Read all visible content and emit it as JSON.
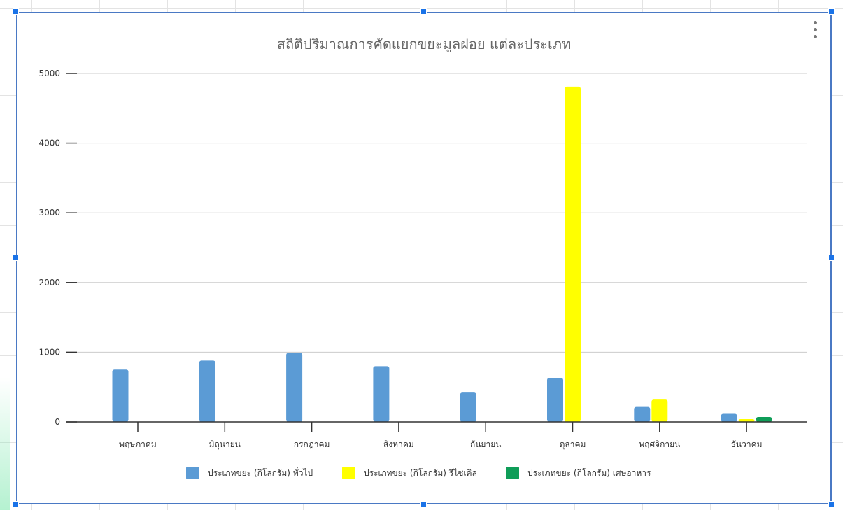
{
  "chart_data": {
    "type": "bar",
    "title": "สถิติปริมาณการคัดแยกขยะมูลฝอย แต่ละประเภท",
    "xlabel": "",
    "ylabel": "",
    "ylim": [
      0,
      5000
    ],
    "yticks": [
      "0",
      "1000",
      "2000",
      "3000",
      "4000",
      "5000"
    ],
    "categories": [
      "พฤษภาคม",
      "มิถุนายน",
      "กรกฎาคม",
      "สิงหาคม",
      "กันยายน",
      "ตุลาคม",
      "พฤศจิกายน",
      "ธันวาคม"
    ],
    "series": [
      {
        "name": "ประเภทขยะ (กิโลกรัม) ทั่วไป",
        "color": "#5b9bd5",
        "values": [
          750,
          880,
          990,
          800,
          420,
          630,
          215,
          115
        ]
      },
      {
        "name": "ประเภทขยะ (กิโลกรัม) รีไซเคิล",
        "color": "#ffff00",
        "values": [
          0,
          0,
          0,
          0,
          0,
          4810,
          320,
          40
        ]
      },
      {
        "name": "ประเภทขยะ (กิโลกรัม) เศษอาหาร",
        "color": "#0f9d58",
        "values": [
          0,
          0,
          0,
          0,
          0,
          0,
          0,
          70
        ]
      }
    ],
    "grid": true,
    "legend_position": "bottom"
  }
}
